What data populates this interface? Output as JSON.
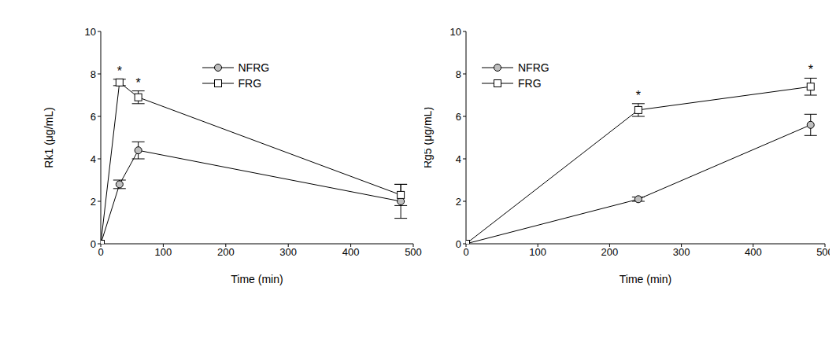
{
  "chart_data": [
    {
      "type": "line",
      "x_label": "Time (min)",
      "y_label": "Rk1 (μg/mL)",
      "xlim": [
        0,
        500
      ],
      "xticks": [
        0,
        100,
        200,
        300,
        400,
        500
      ],
      "ylim": [
        0,
        10
      ],
      "yticks": [
        0,
        2,
        4,
        6,
        8,
        10
      ],
      "legend": "upper center",
      "x": [
        0,
        30,
        60,
        480
      ],
      "series": [
        {
          "name": "NFRG",
          "color": "#bfbfbf",
          "marker": "circle",
          "values": [
            0,
            2.8,
            4.4,
            2.0
          ],
          "errors": [
            0,
            0.2,
            0.4,
            0.8
          ]
        },
        {
          "name": "FRG",
          "color": "#ffffff",
          "marker": "square",
          "values": [
            0,
            7.6,
            6.9,
            2.3
          ],
          "errors": [
            0,
            0.15,
            0.3,
            0.5
          ]
        }
      ],
      "annotations": [
        {
          "text": "*",
          "x": 30,
          "y": 7.75
        },
        {
          "text": "*",
          "x": 60,
          "y": 7.2
        }
      ]
    },
    {
      "type": "line",
      "x_label": "Time (min)",
      "y_label": "Rg5 (μg/mL)",
      "xlim": [
        0,
        500
      ],
      "xticks": [
        0,
        100,
        200,
        300,
        400,
        500
      ],
      "ylim": [
        0,
        10
      ],
      "yticks": [
        0,
        2,
        4,
        6,
        8,
        10
      ],
      "legend": "upper left",
      "x": [
        0,
        240,
        480
      ],
      "series": [
        {
          "name": "NFRG",
          "color": "#bfbfbf",
          "marker": "circle",
          "values": [
            0,
            2.1,
            5.6
          ],
          "errors": [
            0,
            0.1,
            0.5
          ]
        },
        {
          "name": "FRG",
          "color": "#ffffff",
          "marker": "square",
          "values": [
            0,
            6.3,
            7.4
          ],
          "errors": [
            0,
            0.3,
            0.4
          ]
        }
      ],
      "annotations": [
        {
          "text": "*",
          "x": 240,
          "y": 6.6
        },
        {
          "text": "*",
          "x": 480,
          "y": 7.8
        }
      ]
    }
  ]
}
